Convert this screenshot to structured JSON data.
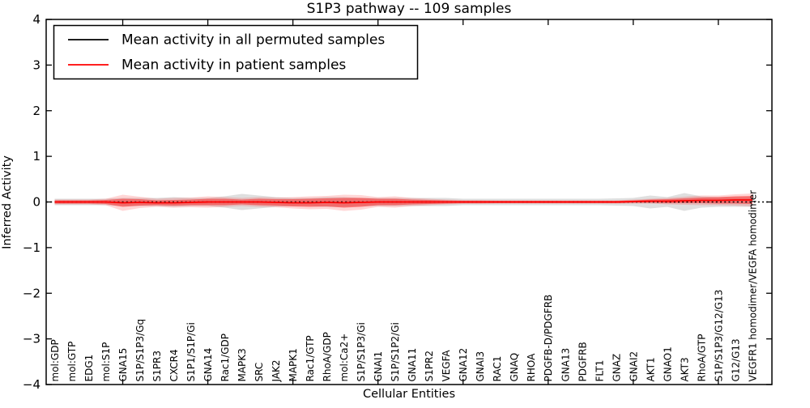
{
  "title": "S1P3 pathway -- 109 samples",
  "axes": {
    "ylabel": "Inferred Activity",
    "xlabel": "Cellular Entities",
    "yticks": [
      {
        "value": 4,
        "label": "4"
      },
      {
        "value": 3,
        "label": "3"
      },
      {
        "value": 2,
        "label": "2"
      },
      {
        "value": 1,
        "label": "1"
      },
      {
        "value": 0,
        "label": "0"
      },
      {
        "value": -1,
        "label": "−1"
      },
      {
        "value": -2,
        "label": "−2"
      },
      {
        "value": -3,
        "label": "−3"
      },
      {
        "value": -4,
        "label": "−4"
      }
    ]
  },
  "legend": {
    "items": [
      {
        "label": "Mean activity in all permuted samples",
        "color": "#000000"
      },
      {
        "label": "Mean activity in patient samples",
        "color": "#ff0000"
      }
    ]
  },
  "colors": {
    "patient_line": "#ff0000",
    "permuted_line": "#000000",
    "patient_band_inner": "rgba(255,0,0,0.42)",
    "patient_band_outer": "rgba(255,0,0,0.16)",
    "permuted_band": "rgba(128,128,128,0.25)",
    "axis": "#000000",
    "background": "#ffffff"
  },
  "chart_data": {
    "type": "line",
    "title": "S1P3 pathway -- 109 samples",
    "xlabel": "Cellular Entities",
    "ylabel": "Inferred Activity",
    "ylim": [
      -4,
      4
    ],
    "grid": false,
    "legend_position": "upper left",
    "xtick_positions": [
      5,
      10,
      15,
      20,
      25,
      30,
      35,
      40
    ],
    "categories": [
      "mol:GDP",
      "mol:GTP",
      "EDG1",
      "mol:S1P",
      "GNA15",
      "S1P/S1P3/Gq",
      "S1PR3",
      "CXCR4",
      "S1P1/S1P/Gi",
      "GNA14",
      "Rac1/GDP",
      "MAPK3",
      "SRC",
      "JAK2",
      "MAPK1",
      "Rac1/GTP",
      "RhoA/GDP",
      "mol:Ca2+",
      "S1P/S1P3/Gi",
      "GNAI1",
      "S1P/S1P2/Gi",
      "GNA11",
      "S1PR2",
      "VEGFA",
      "GNA12",
      "GNAI3",
      "RAC1",
      "GNAQ",
      "RHOA",
      "PDGFB-D/PDGFRB",
      "GNA13",
      "PDGFRB",
      "FLT1",
      "GNAZ",
      "GNAI2",
      "AKT1",
      "GNAO1",
      "AKT3",
      "RhoA/GTP",
      "S1P/S1P3/G12/G13",
      "G12/G13",
      "VEGFR1 homodimer/VEGFA homodimer"
    ],
    "series": [
      {
        "name": "Mean activity in all permuted samples",
        "color": "#000000",
        "style": "dotted",
        "values": [
          0,
          0,
          0,
          0,
          0,
          0,
          0,
          0,
          0,
          0,
          0,
          0,
          0,
          0,
          0,
          0,
          0,
          0,
          0,
          0,
          0,
          0,
          0,
          0,
          0,
          0,
          0,
          0,
          0,
          0,
          0,
          0,
          0,
          0,
          0,
          0,
          0,
          0,
          0,
          0,
          0,
          0
        ]
      },
      {
        "name": "Mean activity in patient samples",
        "color": "#ff0000",
        "style": "solid",
        "values": [
          0,
          0,
          0,
          0,
          -0.018,
          -0.009,
          -0.018,
          -0.018,
          -0.009,
          0,
          0,
          0,
          0,
          -0.009,
          -0.018,
          -0.018,
          -0.009,
          -0.018,
          -0.009,
          0,
          0,
          0,
          0,
          0,
          0,
          0,
          0,
          0,
          0,
          0,
          0,
          0,
          0,
          0,
          0.009,
          0.018,
          0.018,
          0.027,
          0.035,
          0.035,
          0.044,
          0.044
        ]
      }
    ],
    "bands": [
      {
        "name": "permuted-sample-range",
        "center_series": 0,
        "color": "rgba(128,128,128,0.25)",
        "half_widths": [
          0.071,
          0.071,
          0.071,
          0.071,
          0.089,
          0.089,
          0.089,
          0.106,
          0.089,
          0.089,
          0.124,
          0.177,
          0.142,
          0.106,
          0.089,
          0.089,
          0.106,
          0.106,
          0.089,
          0.089,
          0.089,
          0.089,
          0.089,
          0.089,
          0.071,
          0.071,
          0.071,
          0.071,
          0.071,
          0.071,
          0.071,
          0.071,
          0.071,
          0.08,
          0.089,
          0.142,
          0.106,
          0.195,
          0.124,
          0.106,
          0.106,
          0.106
        ]
      },
      {
        "name": "patient-band-outer",
        "center_series": 1,
        "color": "rgba(255,0,0,0.16)",
        "half_widths": [
          0.053,
          0.053,
          0.053,
          0.071,
          0.177,
          0.124,
          0.089,
          0.106,
          0.106,
          0.124,
          0.106,
          0.089,
          0.106,
          0.106,
          0.124,
          0.142,
          0.142,
          0.177,
          0.16,
          0.106,
          0.124,
          0.089,
          0.071,
          0.053,
          0.044,
          0.044,
          0.035,
          0.035,
          0.035,
          0.035,
          0.035,
          0.035,
          0.035,
          0.035,
          0.044,
          0.053,
          0.071,
          0.089,
          0.106,
          0.106,
          0.124,
          0.142
        ]
      },
      {
        "name": "patient-band-inner",
        "center_series": 1,
        "color": "rgba(255,0,0,0.42)",
        "half_widths": [
          0.035,
          0.035,
          0.035,
          0.044,
          0.089,
          0.071,
          0.053,
          0.062,
          0.062,
          0.071,
          0.071,
          0.053,
          0.071,
          0.071,
          0.08,
          0.089,
          0.089,
          0.106,
          0.098,
          0.071,
          0.071,
          0.053,
          0.044,
          0.035,
          0.027,
          0.027,
          0.027,
          0.027,
          0.027,
          0.027,
          0.027,
          0.027,
          0.027,
          0.027,
          0.027,
          0.035,
          0.044,
          0.053,
          0.062,
          0.071,
          0.08,
          0.089
        ]
      }
    ]
  }
}
